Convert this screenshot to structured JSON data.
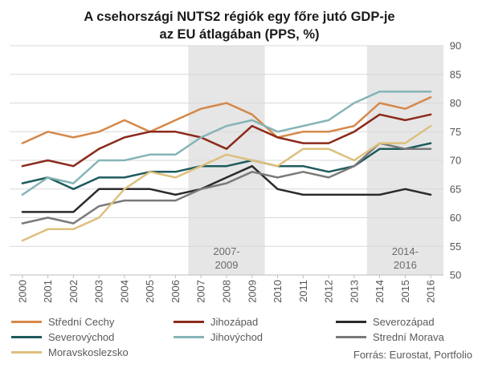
{
  "chart_data": {
    "type": "line",
    "title": [
      "A csehországi NUTS2 régiók egy főre jutó GDP-je",
      "az EU átlagában (PPS, %)"
    ],
    "xlabel": "",
    "ylabel": "",
    "x": [
      "2000",
      "2001",
      "2002",
      "2003",
      "2004",
      "2005",
      "2006",
      "2007",
      "2008",
      "2009",
      "2010",
      "2011",
      "2012",
      "2013",
      "2014",
      "2015",
      "2016"
    ],
    "ylim": [
      50,
      90
    ],
    "yticks": [
      "50",
      "55",
      "60",
      "65",
      "70",
      "75",
      "80",
      "85",
      "90"
    ],
    "y_axis_position": "right",
    "grid": true,
    "legend_position": "bottom",
    "shaded_periods": [
      {
        "label_lines": [
          "2007-",
          "2009"
        ],
        "from": "2007",
        "to": "2009"
      },
      {
        "label_lines": [
          "2014-",
          "2016"
        ],
        "from": "2014",
        "to": "2016"
      }
    ],
    "series": [
      {
        "name": "Střední Cechy",
        "color": "#d6884a",
        "values": [
          73,
          75,
          74,
          75,
          77,
          75,
          77,
          79,
          80,
          78,
          74,
          75,
          75,
          76,
          80,
          79,
          81
        ]
      },
      {
        "name": "Jihozápad",
        "color": "#8b2a1c",
        "values": [
          69,
          70,
          69,
          72,
          74,
          75,
          75,
          74,
          72,
          76,
          74,
          73,
          73,
          75,
          78,
          77,
          78
        ]
      },
      {
        "name": "Severozápad",
        "color": "#2b2b2b",
        "values": [
          61,
          61,
          61,
          65,
          65,
          65,
          64,
          65,
          67,
          69,
          65,
          64,
          64,
          64,
          64,
          65,
          64
        ]
      },
      {
        "name": "Severovýchod",
        "color": "#1e5b5d",
        "values": [
          66,
          67,
          65,
          67,
          67,
          68,
          68,
          69,
          69,
          70,
          69,
          69,
          68,
          69,
          72,
          72,
          73
        ]
      },
      {
        "name": "Jihovýchod",
        "color": "#86b4b6",
        "values": [
          64,
          67,
          66,
          70,
          70,
          71,
          71,
          74,
          76,
          77,
          75,
          76,
          77,
          80,
          82,
          82,
          82
        ]
      },
      {
        "name": "Strední Morava",
        "color": "#7a7a7a",
        "values": [
          59,
          60,
          59,
          62,
          63,
          63,
          63,
          65,
          66,
          68,
          67,
          68,
          67,
          69,
          73,
          72,
          72
        ]
      },
      {
        "name": "Moravskoslezsko",
        "color": "#ddc07e",
        "values": [
          56,
          58,
          58,
          60,
          65,
          68,
          67,
          69,
          71,
          70,
          69,
          72,
          72,
          70,
          73,
          73,
          76
        ]
      }
    ],
    "source": "Forrás: Eurostat, Portfolio"
  }
}
